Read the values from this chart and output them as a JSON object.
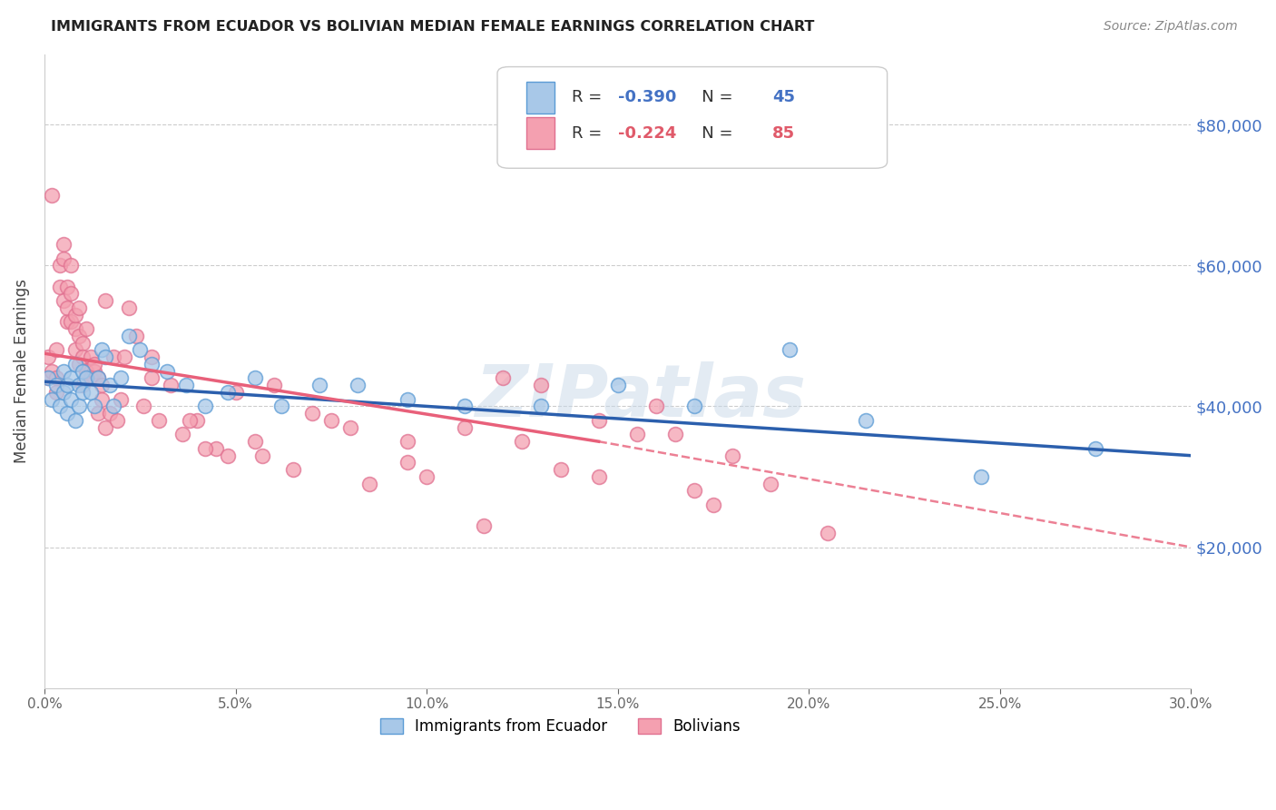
{
  "title": "IMMIGRANTS FROM ECUADOR VS BOLIVIAN MEDIAN FEMALE EARNINGS CORRELATION CHART",
  "source": "Source: ZipAtlas.com",
  "ylabel": "Median Female Earnings",
  "xlabel_ticks": [
    "0.0%",
    "5.0%",
    "10.0%",
    "15.0%",
    "20.0%",
    "25.0%",
    "30.0%"
  ],
  "ytick_labels": [
    "$20,000",
    "$40,000",
    "$60,000",
    "$80,000"
  ],
  "ytick_values": [
    20000,
    40000,
    60000,
    80000
  ],
  "ylim": [
    0,
    90000
  ],
  "xlim": [
    0.0,
    0.3
  ],
  "r_ecuador": -0.39,
  "n_ecuador": 45,
  "r_bolivian": -0.224,
  "n_bolivian": 85,
  "legend_label_ecuador": "Immigrants from Ecuador",
  "legend_label_bolivian": "Bolivians",
  "color_ecuador": "#a8c8e8",
  "color_bolivian": "#f4a0b0",
  "edge_color_ecuador": "#5b9bd5",
  "edge_color_bolivian": "#e07090",
  "trend_color_ecuador": "#2b5fad",
  "trend_color_bolivian": "#e8607a",
  "watermark": "ZIPatlas",
  "ecuador_x": [
    0.001,
    0.002,
    0.003,
    0.004,
    0.005,
    0.005,
    0.006,
    0.006,
    0.007,
    0.007,
    0.008,
    0.008,
    0.009,
    0.009,
    0.01,
    0.01,
    0.011,
    0.012,
    0.013,
    0.014,
    0.015,
    0.016,
    0.017,
    0.018,
    0.02,
    0.022,
    0.025,
    0.028,
    0.032,
    0.037,
    0.042,
    0.048,
    0.055,
    0.062,
    0.072,
    0.082,
    0.095,
    0.11,
    0.13,
    0.15,
    0.17,
    0.195,
    0.215,
    0.245,
    0.275
  ],
  "ecuador_y": [
    44000,
    41000,
    43000,
    40000,
    42000,
    45000,
    39000,
    43000,
    41000,
    44000,
    38000,
    46000,
    40000,
    43000,
    42000,
    45000,
    44000,
    42000,
    40000,
    44000,
    48000,
    47000,
    43000,
    40000,
    44000,
    50000,
    48000,
    46000,
    45000,
    43000,
    40000,
    42000,
    44000,
    40000,
    43000,
    43000,
    41000,
    40000,
    40000,
    43000,
    40000,
    48000,
    38000,
    30000,
    34000
  ],
  "bolivian_x": [
    0.001,
    0.001,
    0.002,
    0.002,
    0.003,
    0.003,
    0.003,
    0.004,
    0.004,
    0.005,
    0.005,
    0.005,
    0.006,
    0.006,
    0.006,
    0.007,
    0.007,
    0.007,
    0.008,
    0.008,
    0.008,
    0.009,
    0.009,
    0.009,
    0.01,
    0.01,
    0.01,
    0.011,
    0.011,
    0.012,
    0.012,
    0.013,
    0.013,
    0.014,
    0.014,
    0.015,
    0.015,
    0.016,
    0.016,
    0.017,
    0.018,
    0.019,
    0.02,
    0.021,
    0.022,
    0.024,
    0.026,
    0.028,
    0.03,
    0.033,
    0.036,
    0.04,
    0.045,
    0.05,
    0.057,
    0.065,
    0.075,
    0.085,
    0.1,
    0.115,
    0.135,
    0.042,
    0.06,
    0.08,
    0.095,
    0.11,
    0.125,
    0.145,
    0.16,
    0.175,
    0.19,
    0.205,
    0.155,
    0.12,
    0.165,
    0.145,
    0.17,
    0.18,
    0.13,
    0.095,
    0.07,
    0.055,
    0.048,
    0.038,
    0.028
  ],
  "bolivian_y": [
    47000,
    44000,
    45000,
    70000,
    48000,
    44000,
    42000,
    57000,
    60000,
    63000,
    61000,
    55000,
    52000,
    57000,
    54000,
    56000,
    60000,
    52000,
    48000,
    51000,
    53000,
    54000,
    50000,
    46000,
    49000,
    47000,
    43000,
    51000,
    45000,
    47000,
    44000,
    45000,
    46000,
    44000,
    39000,
    43000,
    41000,
    37000,
    55000,
    39000,
    47000,
    38000,
    41000,
    47000,
    54000,
    50000,
    40000,
    47000,
    38000,
    43000,
    36000,
    38000,
    34000,
    42000,
    33000,
    31000,
    38000,
    29000,
    30000,
    23000,
    31000,
    34000,
    43000,
    37000,
    32000,
    37000,
    35000,
    38000,
    40000,
    26000,
    29000,
    22000,
    36000,
    44000,
    36000,
    30000,
    28000,
    33000,
    43000,
    35000,
    39000,
    35000,
    33000,
    38000,
    44000
  ],
  "trend_ec_x0": 0.0,
  "trend_ec_x1": 0.3,
  "trend_ec_y0": 43500,
  "trend_ec_y1": 33000,
  "trend_bo_solid_x0": 0.0,
  "trend_bo_solid_x1": 0.145,
  "trend_bo_solid_y0": 47500,
  "trend_bo_solid_y1": 35000,
  "trend_bo_dash_x0": 0.145,
  "trend_bo_dash_x1": 0.3,
  "trend_bo_dash_y0": 35000,
  "trend_bo_dash_y1": 20000
}
